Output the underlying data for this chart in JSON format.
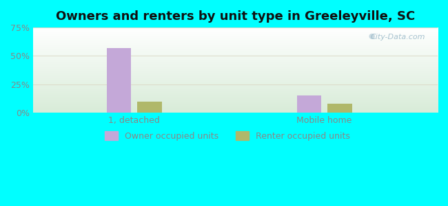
{
  "title": "Owners and renters by unit type in Greeleyville, SC",
  "title_fontsize": 13,
  "categories": [
    "1, detached",
    "Mobile home"
  ],
  "owner_values": [
    57.0,
    15.0
  ],
  "renter_values": [
    10.0,
    8.0
  ],
  "owner_color": "#c4a8d8",
  "renter_color": "#b0b86a",
  "ylim": [
    0,
    75
  ],
  "yticks": [
    0,
    25,
    50,
    75
  ],
  "ytick_labels": [
    "0%",
    "25%",
    "50%",
    "75%"
  ],
  "bar_width": 0.06,
  "group_centers": [
    0.25,
    0.72
  ],
  "bar_gap": 0.008,
  "legend_owner": "Owner occupied units",
  "legend_renter": "Renter occupied units",
  "outer_bg": "#00ffff",
  "plot_bg_top": "#ffffff",
  "plot_bg_bottom": "#d8ecd8",
  "watermark": "City-Data.com",
  "tick_color": "#888888",
  "grid_color": "#ddddcc",
  "xlim": [
    0.0,
    1.0
  ]
}
